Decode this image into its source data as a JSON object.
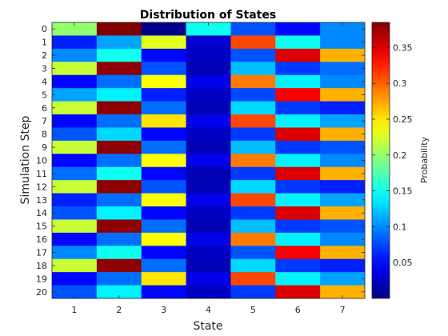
{
  "chart_data": {
    "type": "heatmap",
    "title": "Distribution of States",
    "xlabel": "State",
    "ylabel": "Simulation Step",
    "colorbar_label": "Probability",
    "colormap": "jet",
    "x_categories": [
      "1",
      "2",
      "3",
      "4",
      "5",
      "6",
      "7"
    ],
    "y_categories": [
      "0",
      "1",
      "2",
      "3",
      "4",
      "5",
      "6",
      "7",
      "8",
      "9",
      "10",
      "11",
      "12",
      "13",
      "14",
      "15",
      "16",
      "17",
      "18",
      "19",
      "20"
    ],
    "clim": [
      0.0,
      0.385
    ],
    "colorbar_ticks": [
      0.05,
      0.1,
      0.15,
      0.2,
      0.25,
      0.3,
      0.35
    ],
    "colorbar_tick_labels": [
      "0.05",
      "0.1",
      "0.15",
      "0.2",
      "0.25",
      "0.3",
      "0.35"
    ],
    "values": [
      [
        0.2,
        0.385,
        0.005,
        0.15,
        0.08,
        0.05,
        0.1
      ],
      [
        0.06,
        0.11,
        0.23,
        0.03,
        0.31,
        0.15,
        0.1
      ],
      [
        0.1,
        0.15,
        0.05,
        0.025,
        0.08,
        0.35,
        0.27
      ],
      [
        0.22,
        0.38,
        0.08,
        0.02,
        0.12,
        0.07,
        0.09
      ],
      [
        0.05,
        0.09,
        0.24,
        0.04,
        0.29,
        0.14,
        0.1
      ],
      [
        0.11,
        0.14,
        0.06,
        0.025,
        0.075,
        0.34,
        0.27
      ],
      [
        0.22,
        0.38,
        0.09,
        0.02,
        0.13,
        0.07,
        0.06
      ],
      [
        0.05,
        0.09,
        0.25,
        0.04,
        0.31,
        0.14,
        0.11
      ],
      [
        0.08,
        0.13,
        0.05,
        0.025,
        0.07,
        0.35,
        0.27
      ],
      [
        0.22,
        0.38,
        0.09,
        0.02,
        0.12,
        0.07,
        0.08
      ],
      [
        0.05,
        0.09,
        0.24,
        0.04,
        0.29,
        0.14,
        0.1
      ],
      [
        0.09,
        0.15,
        0.05,
        0.02,
        0.07,
        0.35,
        0.27
      ],
      [
        0.22,
        0.38,
        0.08,
        0.02,
        0.13,
        0.07,
        0.06
      ],
      [
        0.06,
        0.09,
        0.24,
        0.04,
        0.31,
        0.14,
        0.11
      ],
      [
        0.08,
        0.14,
        0.05,
        0.025,
        0.07,
        0.35,
        0.27
      ],
      [
        0.22,
        0.38,
        0.09,
        0.02,
        0.12,
        0.07,
        0.08
      ],
      [
        0.05,
        0.09,
        0.24,
        0.04,
        0.29,
        0.14,
        0.1
      ],
      [
        0.1,
        0.15,
        0.05,
        0.025,
        0.08,
        0.34,
        0.27
      ],
      [
        0.22,
        0.38,
        0.09,
        0.02,
        0.13,
        0.07,
        0.06
      ],
      [
        0.05,
        0.09,
        0.25,
        0.04,
        0.31,
        0.14,
        0.11
      ],
      [
        0.08,
        0.14,
        0.05,
        0.025,
        0.07,
        0.35,
        0.27
      ]
    ],
    "grid": false,
    "colorbar_position": "right"
  }
}
